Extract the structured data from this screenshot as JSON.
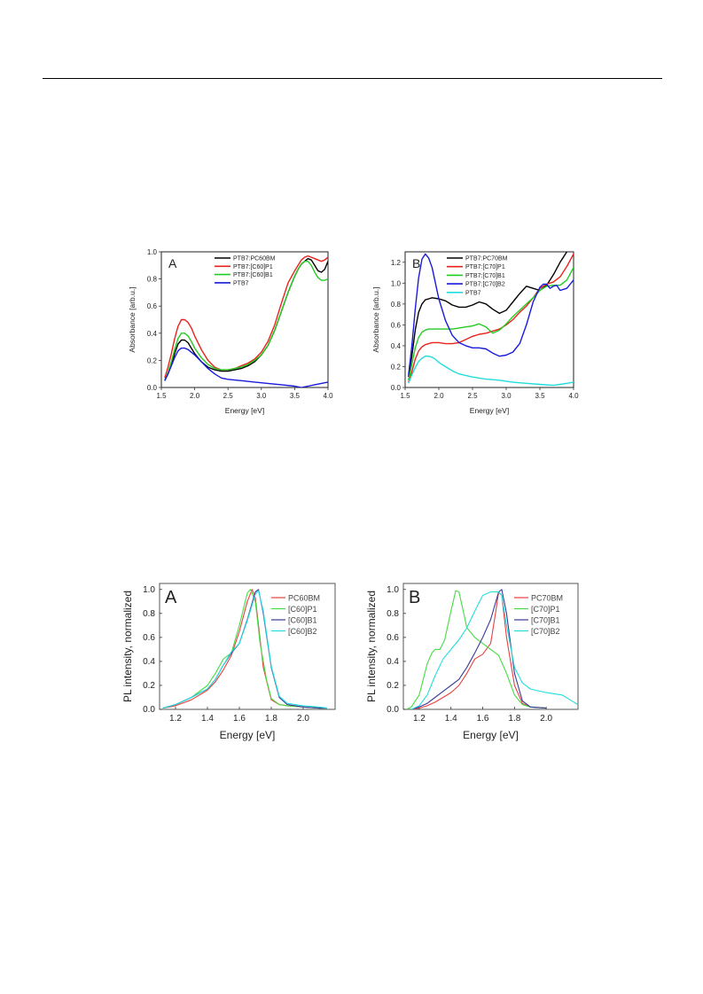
{
  "chart_data": [
    {
      "id": "abs-A",
      "type": "line",
      "panel_label": "A",
      "xlabel": "Energy [eV]",
      "ylabel": "Absorbance [arb.u.]",
      "xlim": [
        1.5,
        4.0
      ],
      "ylim": [
        0,
        1.0
      ],
      "xticks": [
        "1.5",
        "2.0",
        "2.5",
        "3.0",
        "3.5",
        "4.0"
      ],
      "yticks": [
        "0.0",
        "0.2",
        "0.4",
        "0.6",
        "0.8",
        "1.0"
      ],
      "legend_position": "top-center",
      "series": [
        {
          "name": "PTB7:PC60BM",
          "color": "#000000",
          "x": [
            1.55,
            1.6,
            1.65,
            1.7,
            1.75,
            1.8,
            1.85,
            1.9,
            1.95,
            2.0,
            2.1,
            2.2,
            2.3,
            2.4,
            2.5,
            2.6,
            2.7,
            2.8,
            2.9,
            3.0,
            3.1,
            3.2,
            3.3,
            3.4,
            3.5,
            3.55,
            3.6,
            3.65,
            3.7,
            3.75,
            3.8,
            3.85,
            3.9,
            3.95,
            4.0
          ],
          "y": [
            0.05,
            0.1,
            0.17,
            0.25,
            0.32,
            0.35,
            0.35,
            0.33,
            0.29,
            0.25,
            0.19,
            0.15,
            0.13,
            0.12,
            0.12,
            0.13,
            0.14,
            0.16,
            0.19,
            0.24,
            0.31,
            0.42,
            0.56,
            0.7,
            0.82,
            0.87,
            0.91,
            0.93,
            0.95,
            0.94,
            0.9,
            0.86,
            0.85,
            0.87,
            0.93
          ]
        },
        {
          "name": "PTB7:[C60]P1",
          "color": "#e8231e",
          "x": [
            1.55,
            1.6,
            1.65,
            1.7,
            1.75,
            1.8,
            1.85,
            1.9,
            1.95,
            2.0,
            2.1,
            2.2,
            2.3,
            2.4,
            2.5,
            2.6,
            2.7,
            2.8,
            2.9,
            3.0,
            3.1,
            3.2,
            3.3,
            3.4,
            3.5,
            3.55,
            3.6,
            3.65,
            3.7,
            3.75,
            3.8,
            3.85,
            3.9,
            3.95,
            4.0
          ],
          "y": [
            0.07,
            0.15,
            0.25,
            0.36,
            0.45,
            0.5,
            0.5,
            0.48,
            0.44,
            0.38,
            0.28,
            0.2,
            0.15,
            0.13,
            0.13,
            0.14,
            0.16,
            0.18,
            0.21,
            0.26,
            0.34,
            0.46,
            0.62,
            0.77,
            0.86,
            0.9,
            0.94,
            0.96,
            0.97,
            0.96,
            0.95,
            0.94,
            0.93,
            0.94,
            0.96
          ]
        },
        {
          "name": "PTB7:[C60]B1",
          "color": "#22cc22",
          "x": [
            1.55,
            1.6,
            1.65,
            1.7,
            1.75,
            1.8,
            1.85,
            1.9,
            1.95,
            2.0,
            2.1,
            2.2,
            2.3,
            2.4,
            2.5,
            2.6,
            2.7,
            2.8,
            2.9,
            3.0,
            3.1,
            3.2,
            3.3,
            3.4,
            3.5,
            3.55,
            3.6,
            3.65,
            3.7,
            3.75,
            3.8,
            3.85,
            3.9,
            3.95,
            4.0
          ],
          "y": [
            0.05,
            0.11,
            0.19,
            0.28,
            0.36,
            0.4,
            0.4,
            0.38,
            0.34,
            0.29,
            0.22,
            0.17,
            0.14,
            0.13,
            0.13,
            0.14,
            0.15,
            0.17,
            0.2,
            0.24,
            0.31,
            0.42,
            0.56,
            0.7,
            0.82,
            0.87,
            0.91,
            0.93,
            0.93,
            0.9,
            0.85,
            0.81,
            0.79,
            0.79,
            0.8
          ]
        },
        {
          "name": "PTB7",
          "color": "#1a1adb",
          "x": [
            1.55,
            1.6,
            1.65,
            1.7,
            1.75,
            1.8,
            1.85,
            1.9,
            1.95,
            2.0,
            2.1,
            2.2,
            2.3,
            2.4,
            2.5,
            2.7,
            2.9,
            3.1,
            3.3,
            3.5,
            3.6,
            3.7,
            3.8,
            3.9,
            4.0
          ],
          "y": [
            0.05,
            0.1,
            0.16,
            0.22,
            0.27,
            0.29,
            0.29,
            0.28,
            0.26,
            0.24,
            0.19,
            0.14,
            0.1,
            0.07,
            0.06,
            0.05,
            0.04,
            0.03,
            0.02,
            0.01,
            0.0,
            0.01,
            0.02,
            0.03,
            0.04
          ]
        }
      ]
    },
    {
      "id": "abs-B",
      "type": "line",
      "panel_label": "B",
      "xlabel": "Energy [eV]",
      "ylabel": "Absorbance [arb.u.]",
      "xlim": [
        1.5,
        4.0
      ],
      "ylim": [
        0,
        1.3
      ],
      "xticks": [
        "1.5",
        "2.0",
        "2.5",
        "3.0",
        "3.5",
        "4.0"
      ],
      "yticks": [
        "0.0",
        "0.2",
        "0.4",
        "0.6",
        "0.8",
        "1.0",
        "1.2"
      ],
      "legend_position": "top-left",
      "series": [
        {
          "name": "PTB7:PC70BM",
          "color": "#000000",
          "x": [
            1.55,
            1.6,
            1.65,
            1.7,
            1.75,
            1.8,
            1.85,
            1.9,
            2.0,
            2.1,
            2.2,
            2.3,
            2.4,
            2.5,
            2.6,
            2.7,
            2.8,
            2.9,
            3.0,
            3.1,
            3.2,
            3.3,
            3.4,
            3.5,
            3.6,
            3.7,
            3.8,
            3.9,
            4.0
          ],
          "y": [
            0.1,
            0.3,
            0.55,
            0.72,
            0.8,
            0.84,
            0.85,
            0.86,
            0.85,
            0.83,
            0.79,
            0.77,
            0.77,
            0.79,
            0.82,
            0.8,
            0.75,
            0.71,
            0.74,
            0.82,
            0.9,
            0.97,
            0.95,
            0.93,
            0.98,
            1.08,
            1.2,
            1.3,
            1.4
          ]
        },
        {
          "name": "PTB7:[C70]P1",
          "color": "#e8231e",
          "x": [
            1.55,
            1.6,
            1.65,
            1.7,
            1.75,
            1.8,
            1.85,
            1.9,
            2.0,
            2.1,
            2.2,
            2.3,
            2.4,
            2.5,
            2.6,
            2.7,
            2.8,
            2.9,
            3.0,
            3.1,
            3.2,
            3.3,
            3.4,
            3.5,
            3.6,
            3.7,
            3.8,
            3.9,
            4.0
          ],
          "y": [
            0.05,
            0.15,
            0.27,
            0.35,
            0.39,
            0.41,
            0.42,
            0.43,
            0.43,
            0.42,
            0.42,
            0.43,
            0.46,
            0.49,
            0.51,
            0.52,
            0.54,
            0.56,
            0.6,
            0.65,
            0.72,
            0.78,
            0.86,
            0.95,
            0.99,
            1.01,
            1.06,
            1.16,
            1.28
          ]
        },
        {
          "name": "PTB7:[C70]B1",
          "color": "#22cc22",
          "x": [
            1.55,
            1.6,
            1.65,
            1.7,
            1.75,
            1.8,
            1.85,
            1.9,
            2.0,
            2.1,
            2.2,
            2.3,
            2.4,
            2.5,
            2.6,
            2.7,
            2.8,
            2.9,
            3.0,
            3.1,
            3.2,
            3.3,
            3.4,
            3.5,
            3.6,
            3.7,
            3.8,
            3.9,
            4.0
          ],
          "y": [
            0.07,
            0.22,
            0.38,
            0.48,
            0.53,
            0.55,
            0.56,
            0.56,
            0.56,
            0.56,
            0.56,
            0.57,
            0.58,
            0.59,
            0.61,
            0.58,
            0.52,
            0.55,
            0.61,
            0.68,
            0.74,
            0.8,
            0.86,
            0.93,
            0.97,
            0.98,
            0.98,
            1.03,
            1.15
          ]
        },
        {
          "name": "PTB7:[C70]B2",
          "color": "#1a1adb",
          "x": [
            1.55,
            1.6,
            1.65,
            1.7,
            1.75,
            1.8,
            1.85,
            1.9,
            1.95,
            2.0,
            2.1,
            2.2,
            2.3,
            2.4,
            2.5,
            2.6,
            2.7,
            2.8,
            2.9,
            3.0,
            3.1,
            3.2,
            3.3,
            3.4,
            3.5,
            3.55,
            3.6,
            3.65,
            3.7,
            3.75,
            3.8,
            3.9,
            4.0
          ],
          "y": [
            0.12,
            0.4,
            0.75,
            1.05,
            1.23,
            1.28,
            1.24,
            1.15,
            1.0,
            0.85,
            0.64,
            0.5,
            0.43,
            0.4,
            0.38,
            0.38,
            0.37,
            0.33,
            0.3,
            0.31,
            0.34,
            0.42,
            0.6,
            0.82,
            0.96,
            0.99,
            0.99,
            0.95,
            0.97,
            0.98,
            0.93,
            0.95,
            1.03
          ]
        },
        {
          "name": "PTB7",
          "color": "#22dddd",
          "x": [
            1.55,
            1.6,
            1.65,
            1.7,
            1.75,
            1.8,
            1.85,
            1.9,
            1.95,
            2.0,
            2.1,
            2.2,
            2.3,
            2.5,
            2.7,
            2.9,
            3.1,
            3.3,
            3.5,
            3.7,
            3.8,
            3.9,
            4.0
          ],
          "y": [
            0.04,
            0.12,
            0.19,
            0.25,
            0.28,
            0.3,
            0.3,
            0.29,
            0.27,
            0.24,
            0.2,
            0.16,
            0.13,
            0.1,
            0.08,
            0.07,
            0.05,
            0.04,
            0.03,
            0.02,
            0.03,
            0.04,
            0.05
          ]
        }
      ]
    },
    {
      "id": "pl-A",
      "type": "line",
      "panel_label": "A",
      "xlabel": "Energy [eV]",
      "ylabel": "PL intensity, normalized",
      "xlim": [
        1.1,
        2.2
      ],
      "ylim": [
        0,
        1.05
      ],
      "xticks": [
        "1.2",
        "1.4",
        "1.6",
        "1.8",
        "2.0"
      ],
      "xtick_values": [
        1.2,
        1.4,
        1.6,
        1.8,
        2.0
      ],
      "yticks": [
        "0.0",
        "0.2",
        "0.4",
        "0.6",
        "0.8",
        "1.0"
      ],
      "legend_position": "top-right",
      "series": [
        {
          "name": "PC60BM",
          "color": "#e84040",
          "x": [
            1.12,
            1.2,
            1.3,
            1.4,
            1.45,
            1.5,
            1.55,
            1.6,
            1.65,
            1.68,
            1.7,
            1.72,
            1.75,
            1.8,
            1.85,
            1.9,
            2.0,
            2.1,
            2.15
          ],
          "y": [
            0.01,
            0.03,
            0.08,
            0.16,
            0.23,
            0.33,
            0.45,
            0.65,
            0.9,
            1.0,
            0.93,
            0.7,
            0.35,
            0.08,
            0.04,
            0.03,
            0.02,
            0.01,
            0.01
          ]
        },
        {
          "name": "[C60]P1",
          "color": "#44dd44",
          "x": [
            1.12,
            1.2,
            1.3,
            1.4,
            1.45,
            1.5,
            1.55,
            1.6,
            1.65,
            1.67,
            1.7,
            1.73,
            1.77,
            1.8,
            1.85,
            1.9,
            2.0,
            2.1,
            2.15
          ],
          "y": [
            0.01,
            0.04,
            0.1,
            0.2,
            0.3,
            0.42,
            0.47,
            0.7,
            0.97,
            1.0,
            0.9,
            0.55,
            0.25,
            0.09,
            0.04,
            0.03,
            0.02,
            0.01,
            0.01
          ]
        },
        {
          "name": "[C60]B1",
          "color": "#3a3a99",
          "x": [
            1.12,
            1.2,
            1.3,
            1.4,
            1.45,
            1.5,
            1.55,
            1.6,
            1.65,
            1.7,
            1.72,
            1.75,
            1.8,
            1.85,
            1.9,
            2.0,
            2.1,
            2.15
          ],
          "y": [
            0.01,
            0.04,
            0.1,
            0.17,
            0.25,
            0.37,
            0.47,
            0.55,
            0.75,
            0.98,
            1.0,
            0.8,
            0.35,
            0.1,
            0.04,
            0.02,
            0.01,
            0.01
          ]
        },
        {
          "name": "[C60]B2",
          "color": "#22dddd",
          "x": [
            1.12,
            1.2,
            1.3,
            1.4,
            1.45,
            1.5,
            1.55,
            1.6,
            1.65,
            1.7,
            1.72,
            1.75,
            1.8,
            1.85,
            1.9,
            2.0,
            2.1,
            2.15
          ],
          "y": [
            0.01,
            0.04,
            0.1,
            0.17,
            0.25,
            0.37,
            0.48,
            0.55,
            0.74,
            0.96,
            0.99,
            0.82,
            0.36,
            0.11,
            0.05,
            0.03,
            0.02,
            0.01
          ]
        }
      ]
    },
    {
      "id": "pl-B",
      "type": "line",
      "panel_label": "B",
      "xlabel": "Energy [eV]",
      "ylabel": "PL intensity, normalized",
      "xlim": [
        1.1,
        2.2
      ],
      "ylim": [
        0,
        1.05
      ],
      "xticks": [
        "1.2",
        "1.4",
        "1.6",
        "1.8",
        "2.0"
      ],
      "xtick_values": [
        1.2,
        1.4,
        1.6,
        1.8,
        2.0
      ],
      "yticks": [
        "0.0",
        "0.2",
        "0.4",
        "0.6",
        "0.8",
        "1.0"
      ],
      "legend_position": "top-right",
      "series": [
        {
          "name": "PC70BM",
          "color": "#e84040",
          "x": [
            1.15,
            1.2,
            1.25,
            1.3,
            1.35,
            1.4,
            1.45,
            1.5,
            1.55,
            1.6,
            1.65,
            1.68,
            1.7,
            1.72,
            1.75,
            1.8,
            1.85,
            1.9,
            2.0
          ],
          "y": [
            0.0,
            0.01,
            0.03,
            0.06,
            0.1,
            0.14,
            0.2,
            0.3,
            0.42,
            0.46,
            0.55,
            0.8,
            0.98,
            0.95,
            0.6,
            0.2,
            0.05,
            0.02,
            0.01
          ]
        },
        {
          "name": "[C70]P1",
          "color": "#44dd44",
          "x": [
            1.12,
            1.15,
            1.2,
            1.25,
            1.28,
            1.3,
            1.33,
            1.36,
            1.4,
            1.43,
            1.45,
            1.48,
            1.5,
            1.55,
            1.6,
            1.65,
            1.7,
            1.75,
            1.8,
            1.85,
            1.9,
            2.0
          ],
          "y": [
            0.0,
            0.02,
            0.12,
            0.38,
            0.47,
            0.5,
            0.5,
            0.58,
            0.82,
            0.99,
            0.98,
            0.8,
            0.68,
            0.6,
            0.55,
            0.5,
            0.45,
            0.3,
            0.12,
            0.04,
            0.02,
            0.01
          ]
        },
        {
          "name": "[C70]B1",
          "color": "#3a3a99",
          "x": [
            1.15,
            1.2,
            1.25,
            1.3,
            1.35,
            1.4,
            1.45,
            1.5,
            1.55,
            1.6,
            1.65,
            1.7,
            1.72,
            1.75,
            1.8,
            1.85,
            1.9,
            2.0
          ],
          "y": [
            0.0,
            0.02,
            0.05,
            0.1,
            0.15,
            0.2,
            0.25,
            0.35,
            0.47,
            0.6,
            0.75,
            0.98,
            1.0,
            0.8,
            0.3,
            0.07,
            0.02,
            0.01
          ]
        },
        {
          "name": "[C70]B2",
          "color": "#22dddd",
          "x": [
            1.15,
            1.2,
            1.25,
            1.3,
            1.35,
            1.4,
            1.45,
            1.5,
            1.55,
            1.6,
            1.65,
            1.7,
            1.72,
            1.75,
            1.8,
            1.85,
            1.9,
            2.0,
            2.1,
            2.15,
            2.2
          ],
          "y": [
            0.0,
            0.03,
            0.12,
            0.28,
            0.42,
            0.5,
            0.58,
            0.68,
            0.82,
            0.95,
            0.98,
            0.98,
            0.95,
            0.7,
            0.35,
            0.22,
            0.17,
            0.14,
            0.12,
            0.08,
            0.04
          ]
        }
      ]
    }
  ]
}
